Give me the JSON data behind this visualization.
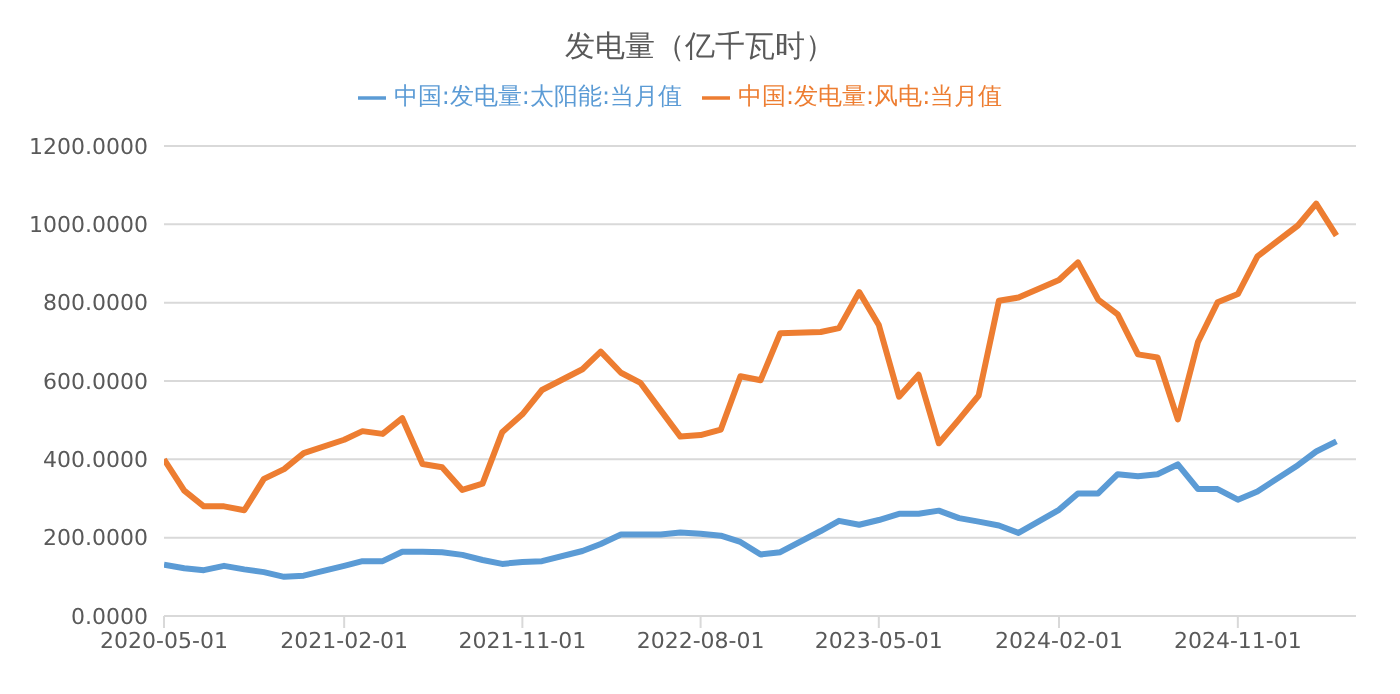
{
  "chart_data": {
    "type": "line",
    "title": "发电量（亿千瓦时）",
    "x": [
      "2020-05",
      "2020-06",
      "2020-07",
      "2020-08",
      "2020-09",
      "2020-10",
      "2020-11",
      "2020-12",
      "2021-02",
      "2021-03",
      "2021-04",
      "2021-05",
      "2021-06",
      "2021-07",
      "2021-08",
      "2021-09",
      "2021-10",
      "2021-11",
      "2021-12",
      "2022-02",
      "2022-03",
      "2022-04",
      "2022-05",
      "2022-06",
      "2022-07",
      "2022-08",
      "2022-09",
      "2022-10",
      "2022-11",
      "2022-12",
      "2023-02",
      "2023-03",
      "2023-04",
      "2023-05",
      "2023-06",
      "2023-07",
      "2023-08",
      "2023-09",
      "2023-10",
      "2023-11",
      "2023-12",
      "2024-02",
      "2024-03",
      "2024-04",
      "2024-05",
      "2024-06",
      "2024-07",
      "2024-08",
      "2024-09",
      "2024-10",
      "2024-11",
      "2024-12",
      "2025-02",
      "2025-03",
      "2025-04"
    ],
    "series": [
      {
        "name": "中国:发电量:太阳能:当月值",
        "color": "#5b9bd5",
        "values": [
          131,
          122,
          117,
          128,
          119,
          112,
          100,
          103,
          128,
          140,
          140,
          164,
          164,
          163,
          156,
          143,
          133,
          138,
          140,
          166,
          184,
          208,
          208,
          208,
          213,
          210,
          205,
          189,
          157,
          163,
          217,
          243,
          233,
          245,
          261,
          261,
          269,
          250,
          241,
          231,
          212,
          271,
          313,
          313,
          362,
          357,
          362,
          387,
          324,
          324,
          297,
          318,
          385,
          420,
          446
        ]
      },
      {
        "name": "中国:发电量:风电:当月值",
        "color": "#ed7d31",
        "values": [
          400,
          320,
          280,
          280,
          270,
          350,
          375,
          416,
          450,
          472,
          465,
          505,
          388,
          380,
          322,
          338,
          469,
          515,
          577,
          630,
          675,
          621,
          595,
          525,
          458,
          462,
          476,
          612,
          602,
          722,
          725,
          735,
          827,
          743,
          560,
          616,
          441,
          502,
          563,
          805,
          813,
          858,
          903,
          808,
          770,
          668,
          660,
          502,
          700,
          801,
          822,
          918,
          997,
          1053,
          971
        ]
      }
    ],
    "xlim": [
      "2020-05-01",
      "2025-05-01"
    ],
    "xticks": [
      "2020-05-01",
      "2021-02-01",
      "2021-11-01",
      "2022-08-01",
      "2023-05-01",
      "2024-02-01",
      "2024-11-01"
    ],
    "ylim": [
      0,
      1200
    ],
    "yticks": [
      {
        "value": 0,
        "label": "0.0000"
      },
      {
        "value": 200,
        "label": "200.0000"
      },
      {
        "value": 400,
        "label": "400.0000"
      },
      {
        "value": 600,
        "label": "600.0000"
      },
      {
        "value": 800,
        "label": "800.0000"
      },
      {
        "value": 1000,
        "label": "1000.0000"
      },
      {
        "value": 1200,
        "label": "1200.0000"
      }
    ],
    "grid": "y",
    "legend": "top",
    "marker": "none",
    "line_style": "solid"
  }
}
